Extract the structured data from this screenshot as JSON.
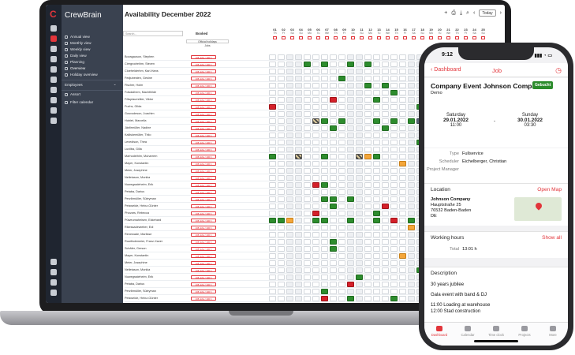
{
  "app": {
    "brand": "CrewBrain"
  },
  "sidebar": {
    "items": [
      {
        "label": "Annual view"
      },
      {
        "label": "Monthly view"
      },
      {
        "label": "Weekly view"
      },
      {
        "label": "Daily view"
      },
      {
        "label": "Planning"
      },
      {
        "label": "Overview"
      },
      {
        "label": "Holiday overview"
      }
    ],
    "employees_label": "Employees",
    "assort_label": "Assort",
    "filter_label": "Filter calendar"
  },
  "header": {
    "title": "Availability December 2022",
    "today_label": "Today"
  },
  "grid": {
    "search_placeholder": "Search...",
    "booked_header": "Booked",
    "official_holidays_label": "Official holidays",
    "jobs_label": "Jobs",
    "booked_value": "108 Jobs / 100 h",
    "days": [
      {
        "n": "01",
        "w": "Th"
      },
      {
        "n": "02",
        "w": "Fr"
      },
      {
        "n": "03",
        "w": "Sa"
      },
      {
        "n": "04",
        "w": "Su"
      },
      {
        "n": "05",
        "w": "Mo"
      },
      {
        "n": "06",
        "w": "Tu"
      },
      {
        "n": "07",
        "w": "We"
      },
      {
        "n": "08",
        "w": "Th"
      },
      {
        "n": "09",
        "w": "Fr"
      },
      {
        "n": "10",
        "w": "Sa"
      },
      {
        "n": "11",
        "w": "Su"
      },
      {
        "n": "12",
        "w": "Mo"
      },
      {
        "n": "13",
        "w": "Tu"
      },
      {
        "n": "14",
        "w": "We"
      },
      {
        "n": "15",
        "w": "Th"
      },
      {
        "n": "16",
        "w": "Fr"
      },
      {
        "n": "17",
        "w": "Sa"
      },
      {
        "n": "18",
        "w": "Su"
      },
      {
        "n": "19",
        "w": "Mo"
      },
      {
        "n": "20",
        "w": "Tu"
      },
      {
        "n": "21",
        "w": "We"
      },
      {
        "n": "22",
        "w": "Th"
      },
      {
        "n": "23",
        "w": "Fr"
      },
      {
        "n": "24",
        "w": "Sa"
      },
      {
        "n": "25",
        "w": "Su"
      }
    ],
    "employees": [
      "Bovagauson, Stephen",
      "Ciregrodreihm, Steven",
      "Cloehelderhm, Karl-Hans",
      "Fedjubesten, Gesine",
      "Fischer, Holm",
      "Folsdalhem, Machthilde",
      "Fölsplaumüller, Viktor",
      "Fuchs, Gilda",
      "Gusvodeson, Joachim",
      "Hubiet, Marcella",
      "Jäsfirmüller, Nadine",
      "Kalliskemüller, Thilo",
      "Levedison, Thea",
      "Luxilba, Gilla",
      "Marhodeihlm, Muharrem",
      "Mayer, Konstantin",
      "Meier, Josephine",
      "Nelletason, Monika",
      "Nuwegradehelm, Erik",
      "Petaba, Darius",
      "Perzlbmüller, Süleyman",
      "Peisweide, Heinz-Günter",
      "Phovars, Rebecca",
      "Püweumaheisen, Ekkehard",
      "Rikessadewieber, Edi",
      "Renewade, Marlisse",
      "Rowlfodemeier, Franz-Xaver",
      "Schäfer, Gerson",
      "Mayer, Konstantin",
      "Meier, Josephine",
      "Nelletason, Monika",
      "Nuwegradehelm, Erik",
      "Petaba, Darius",
      "Perzlbmüller, Süleyman",
      "Peisweide, Heinz-Günter",
      "Phovars, Rebecca"
    ]
  },
  "phone": {
    "time": "9:12",
    "back_label": "Dashboard",
    "nav_title": "Job",
    "job_title": "Company Event Johnson Compan",
    "status_badge": "Gebucht",
    "subtitle": "Demo",
    "start": {
      "day": "Saturday",
      "date": "29.01.2022",
      "time": "11:00"
    },
    "date_separator": "-",
    "end": {
      "day": "Sunday",
      "date": "30.01.2022",
      "time": "03:30"
    },
    "type_label": "Type",
    "type_value": "Fullservice",
    "scheduler_label": "Scheduler",
    "scheduler_value": "Eichelberger, Christian",
    "project_manager_label": "Project Manager",
    "project_manager_value": "",
    "location_label": "Location",
    "open_map_label": "Open Map",
    "address": {
      "name": "Johnson Company",
      "street": "Hauptstraße 25",
      "city": "76532 Baden-Baden",
      "country": "DE"
    },
    "working_hours_label": "Working hours",
    "show_all_label": "Show all",
    "total_label": "Total",
    "total_value": "13:01 h",
    "description_label": "Description",
    "description_lines": [
      "30 years jubilee",
      "Gala event with band & DJ",
      "11:00 Loading at warehouse",
      "12:00 Stad construction"
    ],
    "tabs": [
      {
        "label": "Dashboard"
      },
      {
        "label": "Calendar"
      },
      {
        "label": "Time clock"
      },
      {
        "label": "Projects"
      },
      {
        "label": "More"
      }
    ]
  }
}
